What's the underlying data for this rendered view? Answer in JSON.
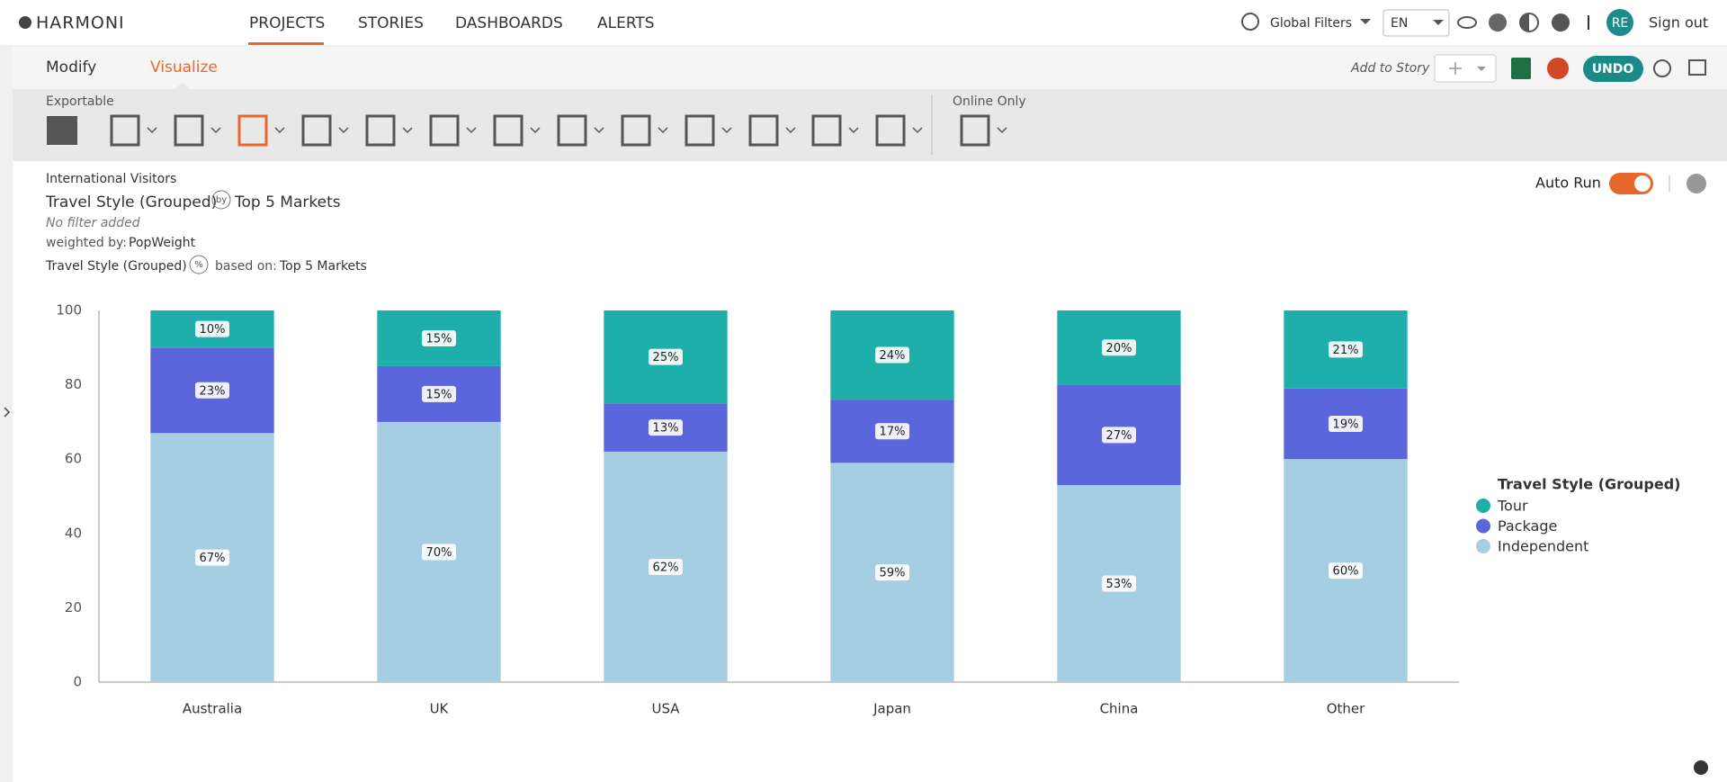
{
  "header": {
    "logo": "HARMONI",
    "nav": [
      "PROJECTS",
      "STORIES",
      "DASHBOARDS",
      "ALERTS"
    ],
    "global_filters": "Global Filters",
    "language": "EN",
    "user_initials": "RE",
    "sign_out": "Sign out"
  },
  "toolbar": {
    "tabs": [
      "Modify",
      "Visualize"
    ],
    "add_to_story": "Add to Story",
    "undo": "UNDO",
    "exportable": "Exportable",
    "online_only": "Online Only"
  },
  "report": {
    "dataset": "International Visitors",
    "row_var": "Travel Style (Grouped)",
    "by_icon": "by",
    "by_var": "Top 5 Markets",
    "filter": "No filter added",
    "weighted_by_label": "weighted by:",
    "weight": "PopWeight",
    "percent_var": "Travel Style (Grouped)",
    "percent_icon": "%",
    "based_on_label": "based on:",
    "based_on": "Top 5 Markets",
    "auto_run": "Auto Run"
  },
  "chart_data": {
    "type": "bar",
    "stacked": true,
    "categories": [
      "Australia",
      "UK",
      "USA",
      "Japan",
      "China",
      "Other"
    ],
    "legend_title": "Travel Style (Grouped)",
    "legend": "right",
    "series": [
      {
        "name": "Tour",
        "color": "#1eafab",
        "values": [
          10,
          15,
          25,
          24,
          20,
          21
        ],
        "value_labels": [
          "10%",
          "15%",
          "25%",
          "24%",
          "20%",
          "21%"
        ]
      },
      {
        "name": "Package",
        "color": "#5b66dd",
        "values": [
          23,
          15,
          13,
          17,
          27,
          19
        ],
        "value_labels": [
          "23%",
          "15%",
          "13%",
          "17%",
          "27%",
          "19%"
        ]
      },
      {
        "name": "Independent",
        "color": "#a6cee2",
        "values": [
          67,
          70,
          62,
          59,
          53,
          60
        ],
        "value_labels": [
          "67%",
          "70%",
          "62%",
          "59%",
          "53%",
          "60%"
        ]
      }
    ],
    "ylim": [
      0,
      100
    ],
    "yticks": [
      0,
      20,
      40,
      60,
      80,
      100
    ],
    "grid": false
  }
}
